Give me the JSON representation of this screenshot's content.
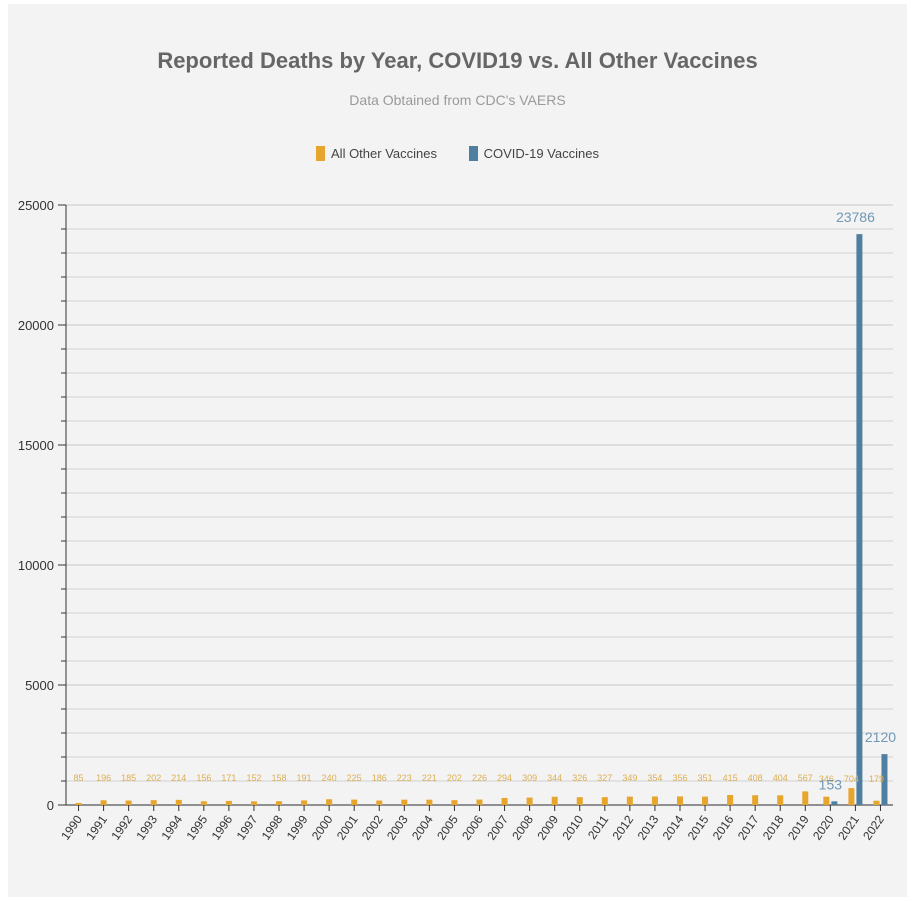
{
  "colors": {
    "other": "#e6a52c",
    "covid": "#4f7fa0",
    "other_label": "#dcae52",
    "covid_label": "#6f98b5",
    "grid": "#d2d2d2",
    "axis": "#333333"
  },
  "chart_data": {
    "type": "bar",
    "title": "Reported Deaths by Year, COVID19 vs. All Other Vaccines",
    "subtitle": "Data Obtained from CDC's VAERS",
    "xlabel": "",
    "ylabel": "",
    "ylim": [
      0,
      25000
    ],
    "yticks": [
      0,
      5000,
      10000,
      15000,
      20000,
      25000
    ],
    "grid": true,
    "legend_position": "top-center",
    "categories": [
      "1990",
      "1991",
      "1992",
      "1993",
      "1994",
      "1995",
      "1996",
      "1997",
      "1998",
      "1999",
      "2000",
      "2001",
      "2002",
      "2003",
      "2004",
      "2005",
      "2006",
      "2007",
      "2008",
      "2009",
      "2010",
      "2011",
      "2012",
      "2013",
      "2014",
      "2015",
      "2016",
      "2017",
      "2018",
      "2019",
      "2020",
      "2021",
      "2022"
    ],
    "series": [
      {
        "name": "All Other Vaccines",
        "values": [
          85,
          196,
          185,
          202,
          214,
          156,
          171,
          152,
          158,
          191,
          240,
          225,
          186,
          223,
          221,
          202,
          226,
          294,
          309,
          344,
          326,
          327,
          349,
          354,
          356,
          351,
          415,
          408,
          404,
          567,
          346,
          704,
          179
        ],
        "labels": [
          "85",
          "196",
          "185",
          "202",
          "214",
          "156",
          "171",
          "152",
          "158",
          "191",
          "240",
          "225",
          "186",
          "223",
          "221",
          "202",
          "226",
          "294",
          "309",
          "344",
          "326",
          "327",
          "349",
          "354",
          "356",
          "351",
          "415",
          "408",
          "404",
          "567",
          "346",
          "704",
          "179"
        ]
      },
      {
        "name": "COVID-19 Vaccines",
        "values": [
          null,
          null,
          null,
          null,
          null,
          null,
          null,
          null,
          null,
          null,
          null,
          null,
          null,
          null,
          null,
          null,
          null,
          null,
          null,
          null,
          null,
          null,
          null,
          null,
          null,
          null,
          null,
          null,
          null,
          null,
          153,
          23786,
          2120
        ],
        "labels": [
          "",
          "",
          "",
          "",
          "",
          "",
          "",
          "",
          "",
          "",
          "",
          "",
          "",
          "",
          "",
          "",
          "",
          "",
          "",
          "",
          "",
          "",
          "",
          "",
          "",
          "",
          "",
          "",
          "",
          "",
          "153",
          "23786",
          "2120"
        ]
      }
    ]
  }
}
